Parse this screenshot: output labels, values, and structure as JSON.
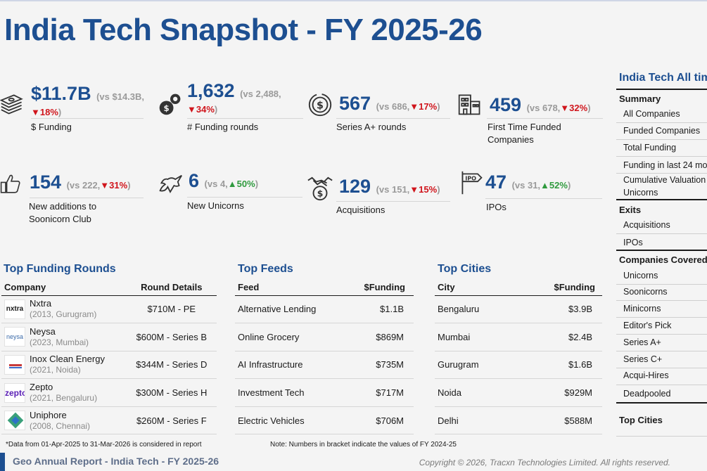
{
  "title": "India Tech Snapshot - FY 2025-26",
  "stats": [
    {
      "icon": "money-stack-icon",
      "value": "$11.7B",
      "cmp": "(vs $14.3B,",
      "dir": "down",
      "pct": "18%",
      "close": ")",
      "label": "$ Funding"
    },
    {
      "icon": "gear-dollar-icon",
      "value": "1,632",
      "cmp": "(vs 2,488,",
      "dir": "down",
      "pct": "34%",
      "close": ")",
      "label": "# Funding rounds"
    },
    {
      "icon": "dollar-circle-icon",
      "value": "567",
      "cmp": "(vs 686,",
      "dir": "down",
      "pct": "17%",
      "close": ")",
      "label": "Series A+ rounds"
    },
    {
      "icon": "building-icon",
      "value": "459",
      "cmp": "(vs 678,",
      "dir": "down",
      "pct": "32%",
      "close": ")",
      "label": "First Time Funded Companies"
    },
    {
      "icon": "thumbs-up-icon",
      "value": "154",
      "cmp": "(vs 222,",
      "dir": "down",
      "pct": "31%",
      "close": ")",
      "label": "New additions to Soonicorn Club"
    },
    {
      "icon": "unicorn-icon",
      "value": "6",
      "cmp": "(vs 4,",
      "dir": "up",
      "pct": "50%",
      "close": ")",
      "label": "New Unicorns"
    },
    {
      "icon": "handshake-icon",
      "value": "129",
      "cmp": "(vs 151,",
      "dir": "down",
      "pct": "15%",
      "close": ")",
      "label": "Acquisitions"
    },
    {
      "icon": "ipo-sign-icon",
      "value": "47",
      "cmp": "(vs 31,",
      "dir": "up",
      "pct": "52%",
      "close": ")",
      "label": "IPOs"
    }
  ],
  "funding": {
    "title": "Top Funding Rounds",
    "col1": "Company",
    "col2": "Round Details",
    "rows": [
      {
        "logo": "nxtra-logo",
        "logo_text": "nxtra",
        "name": "Nxtra",
        "sub": "(2013, Gurugram)",
        "round": "$710M - PE"
      },
      {
        "logo": "neysa-logo",
        "logo_text": "neysa",
        "name": "Neysa",
        "sub": "(2023, Mumbai)",
        "round": "$600M - Series B"
      },
      {
        "logo": "inox-logo",
        "logo_text": "",
        "name": "Inox Clean Energy",
        "sub": "(2021, Noida)",
        "round": "$344M - Series D"
      },
      {
        "logo": "zepto-logo",
        "logo_text": "zepto",
        "name": "Zepto",
        "sub": "(2021, Bengaluru)",
        "round": "$300M - Series H"
      },
      {
        "logo": "uniphore-logo",
        "logo_text": "",
        "name": "Uniphore",
        "sub": "(2008, Chennai)",
        "round": "$260M - Series F"
      }
    ]
  },
  "feeds": {
    "title": "Top Feeds",
    "col1": "Feed",
    "col2": "$Funding",
    "rows": [
      {
        "name": "Alternative Lending",
        "value": "$1.1B"
      },
      {
        "name": "Online Grocery",
        "value": "$869M"
      },
      {
        "name": "AI Infrastructure",
        "value": "$735M"
      },
      {
        "name": "Investment Tech",
        "value": "$717M"
      },
      {
        "name": "Electric Vehicles",
        "value": "$706M"
      }
    ]
  },
  "cities": {
    "title": "Top Cities",
    "col1": "City",
    "col2": "$Funding",
    "rows": [
      {
        "name": "Bengaluru",
        "value": "$3.9B"
      },
      {
        "name": "Mumbai",
        "value": "$2.4B"
      },
      {
        "name": "Gurugram",
        "value": "$1.6B"
      },
      {
        "name": "Noida",
        "value": "$929M"
      },
      {
        "name": "Delhi",
        "value": "$588M"
      }
    ]
  },
  "side": {
    "title": "India Tech All tim",
    "summary": "Summary",
    "summary_items": [
      "All Companies",
      "Funded Companies",
      "Total Funding",
      "Funding in last 24 mo",
      "Cumulative Valuation",
      "Unicorns"
    ],
    "exits": "Exits",
    "exits_items": [
      "Acquisitions",
      "IPOs"
    ],
    "covered": "Companies Covered",
    "covered_items": [
      "Unicorns",
      "Soonicorns",
      "Minicorns",
      "Editor's Pick",
      "Series A+",
      "Series C+",
      "Acqui-Hires",
      "Deadpooled"
    ],
    "cities": "Top Cities"
  },
  "footnote1": "*Data from 01-Apr-2025 to 31-Mar-2026 is considered in report",
  "footnote2": "Note: Numbers in bracket indicate the values of FY 2024-25",
  "report": "Geo Annual Report - India Tech - FY 2025-26",
  "copyright": "Copyright © 2026, Tracxn Technologies Limited. All rights reserved.",
  "colors": {
    "accent": "#1d4f91",
    "down": "#d0151c",
    "up": "#2f9a3e"
  }
}
